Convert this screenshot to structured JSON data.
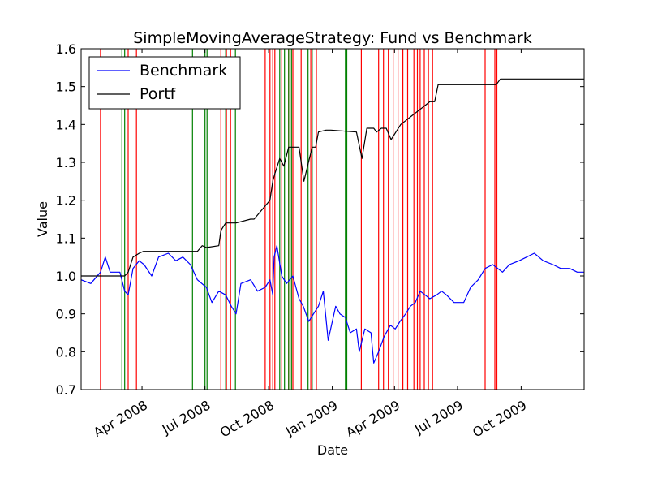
{
  "chart_data": {
    "type": "line",
    "title": "SimpleMovingAverageStrategy: Fund vs Benchmark",
    "xlabel": "Date",
    "ylabel": "Value",
    "ylim": [
      0.7,
      1.6
    ],
    "xlim": [
      "2008-01-04",
      "2009-12-31"
    ],
    "yticks": [
      "0.7",
      "0.8",
      "0.9",
      "1.0",
      "1.1",
      "1.2",
      "1.3",
      "1.4",
      "1.5",
      "1.6"
    ],
    "xticks": [
      {
        "date": "2008-04-01",
        "label": "Apr 2008"
      },
      {
        "date": "2008-07-01",
        "label": "Jul 2008"
      },
      {
        "date": "2008-10-01",
        "label": "Oct 2008"
      },
      {
        "date": "2009-01-01",
        "label": "Jan 2009"
      },
      {
        "date": "2009-04-01",
        "label": "Apr 2009"
      },
      {
        "date": "2009-07-01",
        "label": "Jul 2009"
      },
      {
        "date": "2009-10-01",
        "label": "Oct 2009"
      }
    ],
    "grid": false,
    "legend_position": "top-left",
    "series": [
      {
        "name": "Benchmark",
        "color": "#0000ff",
        "x": [
          "2008-01-04",
          "2008-01-18",
          "2008-02-01",
          "2008-02-08",
          "2008-02-15",
          "2008-02-29",
          "2008-03-07",
          "2008-03-12",
          "2008-03-19",
          "2008-03-28",
          "2008-04-04",
          "2008-04-15",
          "2008-04-25",
          "2008-05-09",
          "2008-05-20",
          "2008-05-30",
          "2008-06-10",
          "2008-06-20",
          "2008-07-03",
          "2008-07-11",
          "2008-07-21",
          "2008-07-31",
          "2008-08-08",
          "2008-08-15",
          "2008-08-22",
          "2008-09-05",
          "2008-09-15",
          "2008-09-26",
          "2008-10-03",
          "2008-10-07",
          "2008-10-09",
          "2008-10-13",
          "2008-10-20",
          "2008-10-27",
          "2008-11-05",
          "2008-11-14",
          "2008-11-20",
          "2008-11-28",
          "2008-12-05",
          "2008-12-12",
          "2008-12-19",
          "2008-12-26",
          "2009-01-06",
          "2009-01-12",
          "2009-01-20",
          "2009-01-27",
          "2009-02-05",
          "2009-02-09",
          "2009-02-17",
          "2009-02-26",
          "2009-03-02",
          "2009-03-09",
          "2009-03-17",
          "2009-03-26",
          "2009-04-02",
          "2009-04-09",
          "2009-04-17",
          "2009-04-24",
          "2009-05-01",
          "2009-05-08",
          "2009-05-15",
          "2009-05-22",
          "2009-06-01",
          "2009-06-08",
          "2009-06-15",
          "2009-06-26",
          "2009-07-10",
          "2009-07-20",
          "2009-07-31",
          "2009-08-10",
          "2009-08-21",
          "2009-09-04",
          "2009-09-14",
          "2009-09-28",
          "2009-10-09",
          "2009-10-20",
          "2009-11-02",
          "2009-11-16",
          "2009-11-27",
          "2009-12-10",
          "2009-12-21",
          "2009-12-31"
        ],
        "y": [
          0.99,
          0.98,
          1.01,
          1.05,
          1.01,
          1.01,
          0.96,
          0.95,
          1.02,
          1.04,
          1.03,
          1.0,
          1.05,
          1.06,
          1.04,
          1.05,
          1.03,
          0.99,
          0.97,
          0.93,
          0.96,
          0.95,
          0.92,
          0.9,
          0.98,
          0.99,
          0.96,
          0.97,
          0.99,
          0.95,
          1.05,
          1.08,
          1.0,
          0.98,
          1.0,
          0.94,
          0.92,
          0.88,
          0.9,
          0.92,
          0.96,
          0.83,
          0.92,
          0.9,
          0.89,
          0.85,
          0.86,
          0.8,
          0.86,
          0.85,
          0.77,
          0.8,
          0.84,
          0.87,
          0.86,
          0.88,
          0.9,
          0.92,
          0.93,
          0.96,
          0.95,
          0.94,
          0.95,
          0.96,
          0.95,
          0.93,
          0.93,
          0.97,
          0.99,
          1.02,
          1.03,
          1.01,
          1.03,
          1.04,
          1.05,
          1.06,
          1.04,
          1.03,
          1.02,
          1.02,
          1.01,
          1.01
        ]
      },
      {
        "name": "Portf",
        "color": "#000000",
        "x": [
          "2008-01-04",
          "2008-03-07",
          "2008-03-12",
          "2008-03-19",
          "2008-03-28",
          "2008-04-03",
          "2008-06-20",
          "2008-06-27",
          "2008-07-03",
          "2008-07-21",
          "2008-07-24",
          "2008-07-31",
          "2008-08-08",
          "2008-08-15",
          "2008-09-05",
          "2008-09-10",
          "2008-10-03",
          "2008-10-07",
          "2008-10-10",
          "2008-10-17",
          "2008-10-23",
          "2008-10-30",
          "2008-11-07",
          "2008-11-14",
          "2008-11-21",
          "2008-12-03",
          "2008-12-08",
          "2008-12-12",
          "2008-12-23",
          "2008-12-30",
          "2009-02-05",
          "2009-02-13",
          "2009-02-20",
          "2009-03-02",
          "2009-03-06",
          "2009-03-13",
          "2009-03-20",
          "2009-03-27",
          "2009-04-03",
          "2009-04-10",
          "2009-04-17",
          "2009-04-24",
          "2009-05-01",
          "2009-05-08",
          "2009-05-15",
          "2009-05-22",
          "2009-05-29",
          "2009-06-03",
          "2009-08-26",
          "2009-09-01",
          "2009-12-31"
        ],
        "y": [
          1.0,
          1.0,
          1.01,
          1.05,
          1.06,
          1.065,
          1.065,
          1.08,
          1.075,
          1.08,
          1.12,
          1.14,
          1.14,
          1.14,
          1.15,
          1.15,
          1.2,
          1.25,
          1.27,
          1.31,
          1.29,
          1.34,
          1.34,
          1.34,
          1.25,
          1.34,
          1.34,
          1.38,
          1.385,
          1.385,
          1.38,
          1.31,
          1.39,
          1.39,
          1.38,
          1.39,
          1.39,
          1.36,
          1.38,
          1.4,
          1.41,
          1.42,
          1.43,
          1.44,
          1.45,
          1.46,
          1.46,
          1.505,
          1.505,
          1.52,
          1.52
        ]
      }
    ],
    "signal_lines": {
      "sell_color": "#ff0000",
      "buy_color": "#008000",
      "sell": [
        "2008-02-01",
        "2008-03-12",
        "2008-03-24",
        "2008-07-24",
        "2008-08-01",
        "2008-08-07",
        "2008-09-26",
        "2008-10-03",
        "2008-10-07",
        "2008-10-10",
        "2008-10-20",
        "2008-10-30",
        "2008-11-05",
        "2008-11-17",
        "2008-12-01",
        "2008-12-09",
        "2009-02-12",
        "2009-03-09",
        "2009-03-16",
        "2009-03-23",
        "2009-03-30",
        "2009-04-06",
        "2009-04-13",
        "2009-04-20",
        "2009-04-29",
        "2009-05-04",
        "2009-05-08",
        "2009-05-14",
        "2009-05-20",
        "2009-05-26",
        "2009-08-10",
        "2009-08-24",
        "2009-08-27"
      ],
      "buy": [
        "2008-03-03",
        "2008-03-07",
        "2008-06-13",
        "2008-07-01",
        "2008-07-04",
        "2008-07-31",
        "2008-08-14",
        "2008-10-17",
        "2008-10-24",
        "2008-10-30",
        "2008-11-03",
        "2008-11-27",
        "2008-12-03",
        "2009-01-20",
        "2009-01-22"
      ]
    }
  }
}
